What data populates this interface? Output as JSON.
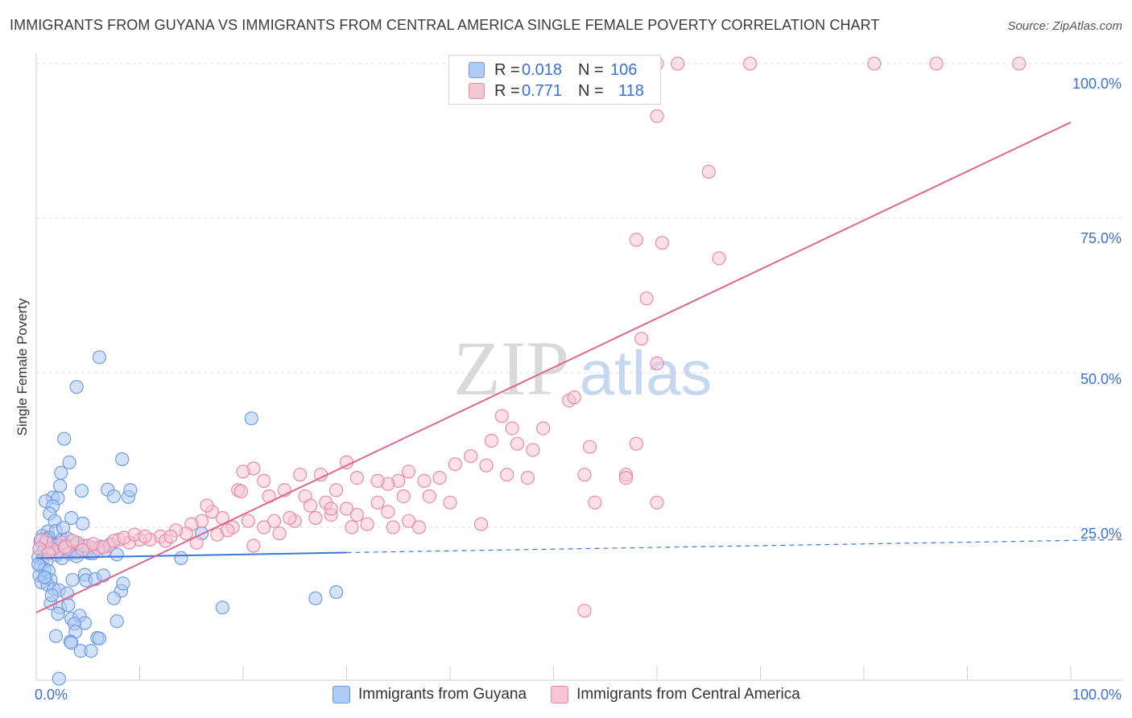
{
  "title": "IMMIGRANTS FROM GUYANA VS IMMIGRANTS FROM CENTRAL AMERICA SINGLE FEMALE POVERTY CORRELATION CHART",
  "source": "Source: ZipAtlas.com",
  "watermark": {
    "zip": "ZIP",
    "atlas": "atlas"
  },
  "legend": {
    "rows": [
      {
        "r_label": "R =",
        "r_value": "0.018",
        "n_label": "N =",
        "n_value": "106",
        "fill": "#aecbf5",
        "stroke": "#6f9be3"
      },
      {
        "r_label": "R =",
        "r_value": "0.771",
        "n_label": "N =",
        "n_value": "118",
        "fill": "#f7c6d5",
        "stroke": "#e88aa6"
      }
    ]
  },
  "bottom_legend": [
    {
      "label": "Immigrants from Guyana",
      "fill": "#aecbf5",
      "stroke": "#6f9be3"
    },
    {
      "label": "Immigrants from Central America",
      "fill": "#f7c6d5",
      "stroke": "#e88aa6"
    }
  ],
  "chart_data": {
    "type": "scatter",
    "title": "IMMIGRANTS FROM GUYANA VS IMMIGRANTS FROM CENTRAL AMERICA SINGLE FEMALE POVERTY CORRELATION CHART",
    "xlabel": "",
    "ylabel": "Single Female Poverty",
    "xlim": [
      0,
      100
    ],
    "ylim": [
      0,
      100
    ],
    "x_tick_labels": [
      "0.0%",
      "100.0%"
    ],
    "y_ticks": [
      25,
      50,
      75,
      100
    ],
    "y_tick_labels": [
      "25.0%",
      "50.0%",
      "75.0%",
      "100.0%"
    ],
    "grid": true,
    "series": [
      {
        "name": "Immigrants from Guyana",
        "color": "#3a78d8",
        "fill": "#aecbf5",
        "stroke": "#6f9be3",
        "R": 0.018,
        "N": 106,
        "trend": {
          "x0": 0,
          "y0": 20.0,
          "x1": 30,
          "y1": 20.9,
          "dashed_to_x": 100,
          "dashed_to_y": 23.0
        },
        "points": [
          [
            6.1,
            52.5
          ],
          [
            3.9,
            47.7
          ],
          [
            8.3,
            36.0
          ],
          [
            20.8,
            42.6
          ],
          [
            2.7,
            39.3
          ],
          [
            3.2,
            35.5
          ],
          [
            2.4,
            33.8
          ],
          [
            2.3,
            31.7
          ],
          [
            1.6,
            29.8
          ],
          [
            2.1,
            29.7
          ],
          [
            0.9,
            29.2
          ],
          [
            1.6,
            28.4
          ],
          [
            1.3,
            27.2
          ],
          [
            1.8,
            26.0
          ],
          [
            3.4,
            26.5
          ],
          [
            4.5,
            25.6
          ],
          [
            1.1,
            24.3
          ],
          [
            1.9,
            24.4
          ],
          [
            0.6,
            23.6
          ],
          [
            1.2,
            23.3
          ],
          [
            2.5,
            23.0
          ],
          [
            3.0,
            23.2
          ],
          [
            0.4,
            22.8
          ],
          [
            0.9,
            22.6
          ],
          [
            1.5,
            22.3
          ],
          [
            2.0,
            22.1
          ],
          [
            2.8,
            22.0
          ],
          [
            3.6,
            22.1
          ],
          [
            4.1,
            21.8
          ],
          [
            5.3,
            21.7
          ],
          [
            6.2,
            21.9
          ],
          [
            0.3,
            21.5
          ],
          [
            0.7,
            21.2
          ],
          [
            1.2,
            21.0
          ],
          [
            1.7,
            21.3
          ],
          [
            2.2,
            20.8
          ],
          [
            2.7,
            21.1
          ],
          [
            3.2,
            20.7
          ],
          [
            4.0,
            20.9
          ],
          [
            4.8,
            21.0
          ],
          [
            7.8,
            20.6
          ],
          [
            0.2,
            20.2
          ],
          [
            0.6,
            19.8
          ],
          [
            1.0,
            19.5
          ],
          [
            0.4,
            18.7
          ],
          [
            0.8,
            18.2
          ],
          [
            1.2,
            17.9
          ],
          [
            0.3,
            17.2
          ],
          [
            0.9,
            16.8
          ],
          [
            1.4,
            16.5
          ],
          [
            0.5,
            16.1
          ],
          [
            1.1,
            15.7
          ],
          [
            1.7,
            15.0
          ],
          [
            2.2,
            14.8
          ],
          [
            3.0,
            14.3
          ],
          [
            3.5,
            16.5
          ],
          [
            4.7,
            17.3
          ],
          [
            4.8,
            16.4
          ],
          [
            5.7,
            16.6
          ],
          [
            6.5,
            17.2
          ],
          [
            8.2,
            14.7
          ],
          [
            8.4,
            15.9
          ],
          [
            7.5,
            13.5
          ],
          [
            1.4,
            12.7
          ],
          [
            2.3,
            12.0
          ],
          [
            3.1,
            12.4
          ],
          [
            2.1,
            11.0
          ],
          [
            3.4,
            10.2
          ],
          [
            4.2,
            10.7
          ],
          [
            4.7,
            9.5
          ],
          [
            3.7,
            9.4
          ],
          [
            7.8,
            9.8
          ],
          [
            3.8,
            8.1
          ],
          [
            5.9,
            7.1
          ],
          [
            6.1,
            7.0
          ],
          [
            3.3,
            6.5
          ],
          [
            1.9,
            7.4
          ],
          [
            4.3,
            5.0
          ],
          [
            5.3,
            5.0
          ],
          [
            2.2,
            0.5
          ],
          [
            3.4,
            6.3
          ],
          [
            14.0,
            20.0
          ],
          [
            16.0,
            24.0
          ],
          [
            18.0,
            12.0
          ],
          [
            27.0,
            13.5
          ],
          [
            29.0,
            14.5
          ],
          [
            4.4,
            30.9
          ],
          [
            6.9,
            31.1
          ],
          [
            5.2,
            20.8
          ],
          [
            3.9,
            22.3
          ],
          [
            2.6,
            24.9
          ],
          [
            4.6,
            22.0
          ],
          [
            8.9,
            29.9
          ],
          [
            9.1,
            31.0
          ],
          [
            7.5,
            30.0
          ],
          [
            0.8,
            16.9
          ],
          [
            1.5,
            14.0
          ],
          [
            5.5,
            20.8
          ],
          [
            6.7,
            21.3
          ],
          [
            3.0,
            21.5
          ],
          [
            2.0,
            20.5
          ],
          [
            1.0,
            23.0
          ],
          [
            0.2,
            19.0
          ],
          [
            3.9,
            20.3
          ],
          [
            7.2,
            22.3
          ],
          [
            2.5,
            20.0
          ]
        ]
      },
      {
        "name": "Immigrants from Central America",
        "color": "#e0658f",
        "fill": "#f7c6d5",
        "stroke": "#e88aa6",
        "R": 0.771,
        "N": 118,
        "trend": {
          "x0": 0,
          "y0": 11.2,
          "x1": 100,
          "y1": 90.5
        },
        "points": [
          [
            60.0,
            100.0
          ],
          [
            62.0,
            100.0
          ],
          [
            69.0,
            100.0
          ],
          [
            81.0,
            100.0
          ],
          [
            87.0,
            100.0
          ],
          [
            95.0,
            100.0
          ],
          [
            60.0,
            91.5
          ],
          [
            65.0,
            82.5
          ],
          [
            58.0,
            71.5
          ],
          [
            60.5,
            71.0
          ],
          [
            66.0,
            68.5
          ],
          [
            59.0,
            62.0
          ],
          [
            58.5,
            55.5
          ],
          [
            60.0,
            51.5
          ],
          [
            51.5,
            45.5
          ],
          [
            52.0,
            46.0
          ],
          [
            45.0,
            43.0
          ],
          [
            46.0,
            41.0
          ],
          [
            49.0,
            41.0
          ],
          [
            48.0,
            37.5
          ],
          [
            53.5,
            38.0
          ],
          [
            58.0,
            38.5
          ],
          [
            57.0,
            33.5
          ],
          [
            60.0,
            29.0
          ],
          [
            54.0,
            29.0
          ],
          [
            44.0,
            39.0
          ],
          [
            46.5,
            38.5
          ],
          [
            42.0,
            36.5
          ],
          [
            43.5,
            35.0
          ],
          [
            40.5,
            35.2
          ],
          [
            45.5,
            33.5
          ],
          [
            47.5,
            33.0
          ],
          [
            39.0,
            33.0
          ],
          [
            37.5,
            32.5
          ],
          [
            36.0,
            34.0
          ],
          [
            35.0,
            32.5
          ],
          [
            34.0,
            32.0
          ],
          [
            33.0,
            32.5
          ],
          [
            30.0,
            35.5
          ],
          [
            31.0,
            33.0
          ],
          [
            29.0,
            31.0
          ],
          [
            27.5,
            33.5
          ],
          [
            25.5,
            33.5
          ],
          [
            24.0,
            31.0
          ],
          [
            22.0,
            32.5
          ],
          [
            21.0,
            34.5
          ],
          [
            20.0,
            34.0
          ],
          [
            19.5,
            31.0
          ],
          [
            22.5,
            30.0
          ],
          [
            26.0,
            30.0
          ],
          [
            28.0,
            29.0
          ],
          [
            30.0,
            28.0
          ],
          [
            33.0,
            29.0
          ],
          [
            35.5,
            30.0
          ],
          [
            38.0,
            30.0
          ],
          [
            40.0,
            29.0
          ],
          [
            36.0,
            26.0
          ],
          [
            34.5,
            25.0
          ],
          [
            32.0,
            25.5
          ],
          [
            30.5,
            25.0
          ],
          [
            28.5,
            27.0
          ],
          [
            27.0,
            26.5
          ],
          [
            25.0,
            26.0
          ],
          [
            23.0,
            26.0
          ],
          [
            22.0,
            25.0
          ],
          [
            20.5,
            26.0
          ],
          [
            19.0,
            25.0
          ],
          [
            18.0,
            26.5
          ],
          [
            17.0,
            27.5
          ],
          [
            16.0,
            26.0
          ],
          [
            15.0,
            25.5
          ],
          [
            14.5,
            24.0
          ],
          [
            13.5,
            24.5
          ],
          [
            12.0,
            23.5
          ],
          [
            11.0,
            23.0
          ],
          [
            10.0,
            23.0
          ],
          [
            9.0,
            22.5
          ],
          [
            8.0,
            23.0
          ],
          [
            7.0,
            22.0
          ],
          [
            6.0,
            21.5
          ],
          [
            5.0,
            22.0
          ],
          [
            4.0,
            22.5
          ],
          [
            3.0,
            21.5
          ],
          [
            2.5,
            22.5
          ],
          [
            2.0,
            21.0
          ],
          [
            1.5,
            21.5
          ],
          [
            1.0,
            22.5
          ],
          [
            0.5,
            23.0
          ],
          [
            0.3,
            21.5
          ],
          [
            1.2,
            20.8
          ],
          [
            2.8,
            21.8
          ],
          [
            3.5,
            22.8
          ],
          [
            4.5,
            21.3
          ],
          [
            5.5,
            22.3
          ],
          [
            6.5,
            21.8
          ],
          [
            7.5,
            22.8
          ],
          [
            8.5,
            23.3
          ],
          [
            9.5,
            23.8
          ],
          [
            10.5,
            23.5
          ],
          [
            12.5,
            22.8
          ],
          [
            13.0,
            23.5
          ],
          [
            15.5,
            22.5
          ],
          [
            17.5,
            23.8
          ],
          [
            18.5,
            24.5
          ],
          [
            21.0,
            22.0
          ],
          [
            23.5,
            24.0
          ],
          [
            24.5,
            26.5
          ],
          [
            26.5,
            28.5
          ],
          [
            28.5,
            28.0
          ],
          [
            31.0,
            27.0
          ],
          [
            34.0,
            27.5
          ],
          [
            37.0,
            25.0
          ],
          [
            43.0,
            25.5
          ],
          [
            16.5,
            28.5
          ],
          [
            19.8,
            30.8
          ],
          [
            53.0,
            33.5
          ],
          [
            57.0,
            33.0
          ],
          [
            53.0,
            11.5
          ]
        ]
      }
    ]
  }
}
